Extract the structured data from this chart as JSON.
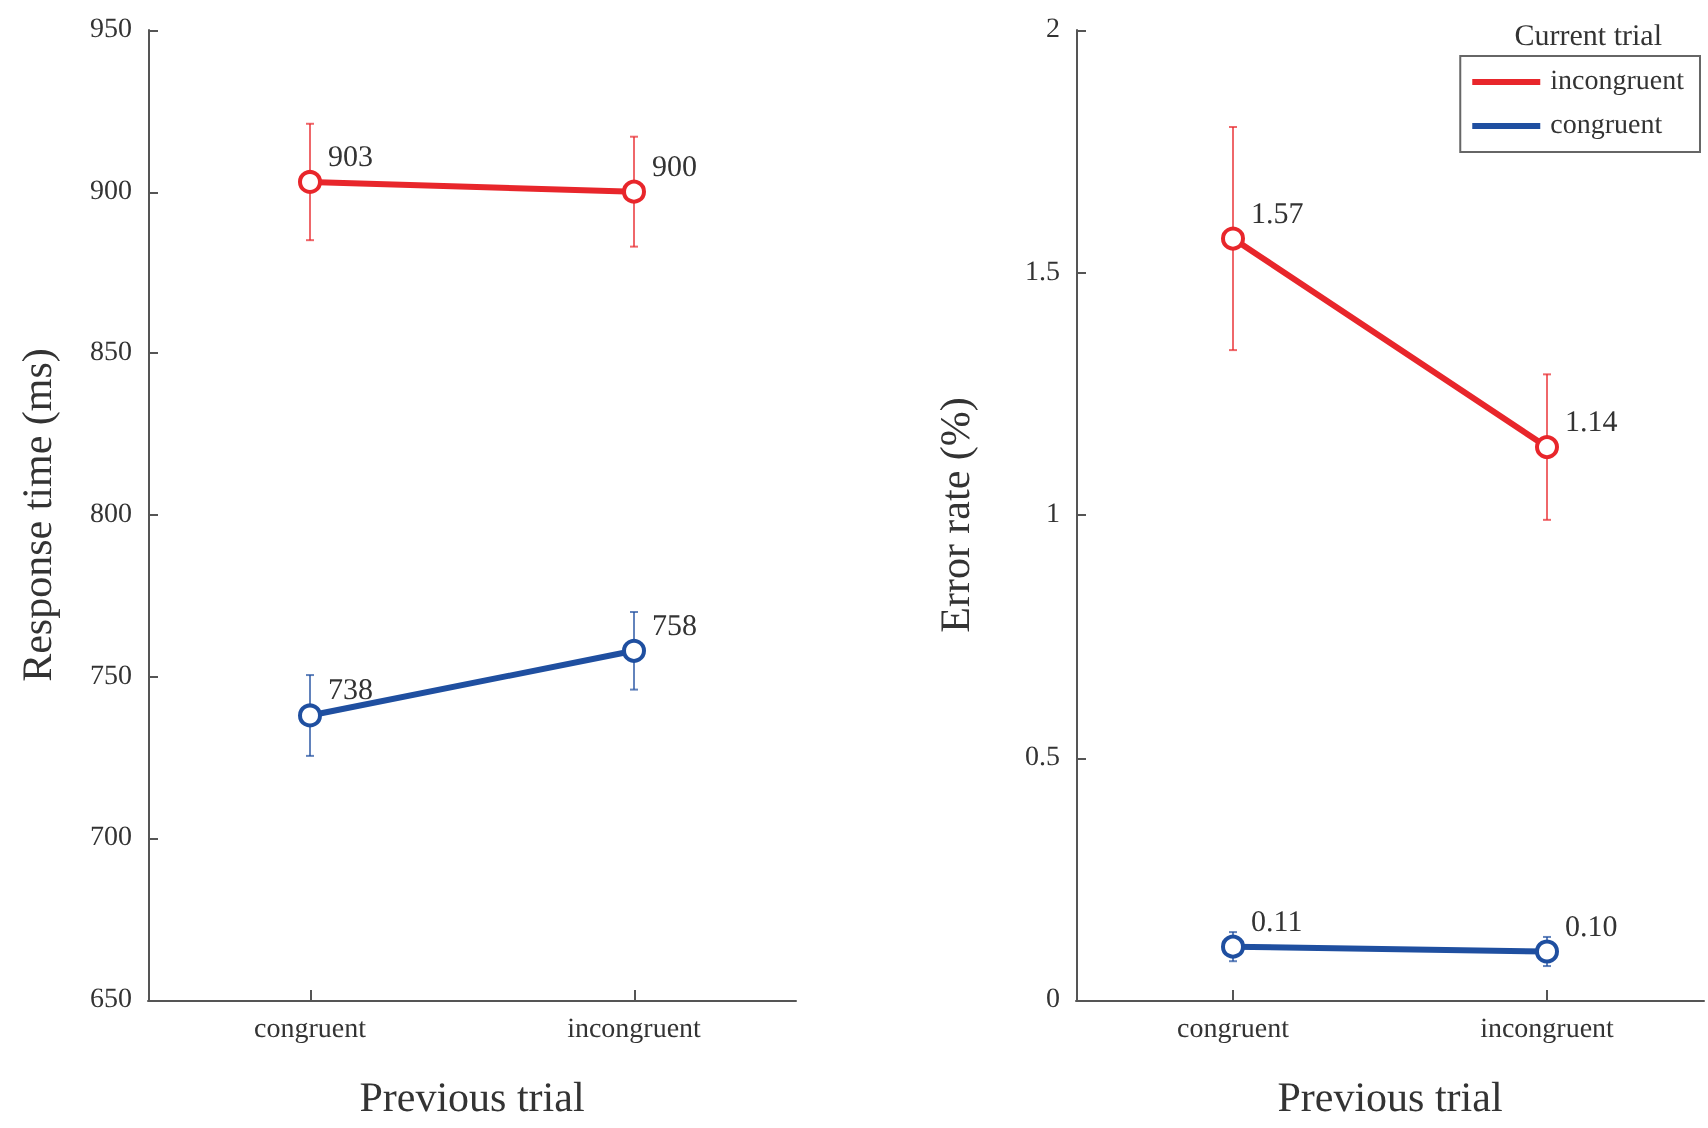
{
  "chart_data": [
    {
      "type": "line",
      "xlabel": "Previous trial",
      "ylabel": "Response time (ms)",
      "categories": [
        "congruent",
        "incongruent"
      ],
      "ylim": [
        650,
        950
      ],
      "yticks": [
        650,
        700,
        750,
        800,
        850,
        900,
        950
      ],
      "marker": "circle",
      "grid": false,
      "legend": false,
      "series": [
        {
          "color": "#e8262b",
          "values": [
            903,
            900
          ],
          "errors": [
            18,
            17
          ],
          "value_labels": [
            "903",
            "900"
          ]
        },
        {
          "color": "#1f4fa0",
          "values": [
            738,
            758
          ],
          "errors": [
            12.5,
            12
          ],
          "value_labels": [
            "738",
            "758"
          ]
        }
      ]
    },
    {
      "type": "line",
      "xlabel": "Previous trial",
      "ylabel": "Error rate (%)",
      "legend_title": "Current trial",
      "categories": [
        "congruent",
        "incongruent"
      ],
      "ylim": [
        0,
        2
      ],
      "yticks": [
        0,
        0.5,
        1,
        1.5,
        2
      ],
      "marker": "circle",
      "grid": false,
      "legend": "top right",
      "series": [
        {
          "name": "incongruent",
          "color": "#e8262b",
          "values": [
            1.57,
            1.14
          ],
          "errors": [
            0.23,
            0.15
          ],
          "value_labels": [
            "1.57",
            "1.14"
          ]
        },
        {
          "name": "congruent",
          "color": "#1f4fa0",
          "values": [
            0.11,
            0.1
          ],
          "errors": [
            0.03,
            0.03
          ],
          "value_labels": [
            "0.11",
            "0.10"
          ]
        }
      ]
    }
  ]
}
